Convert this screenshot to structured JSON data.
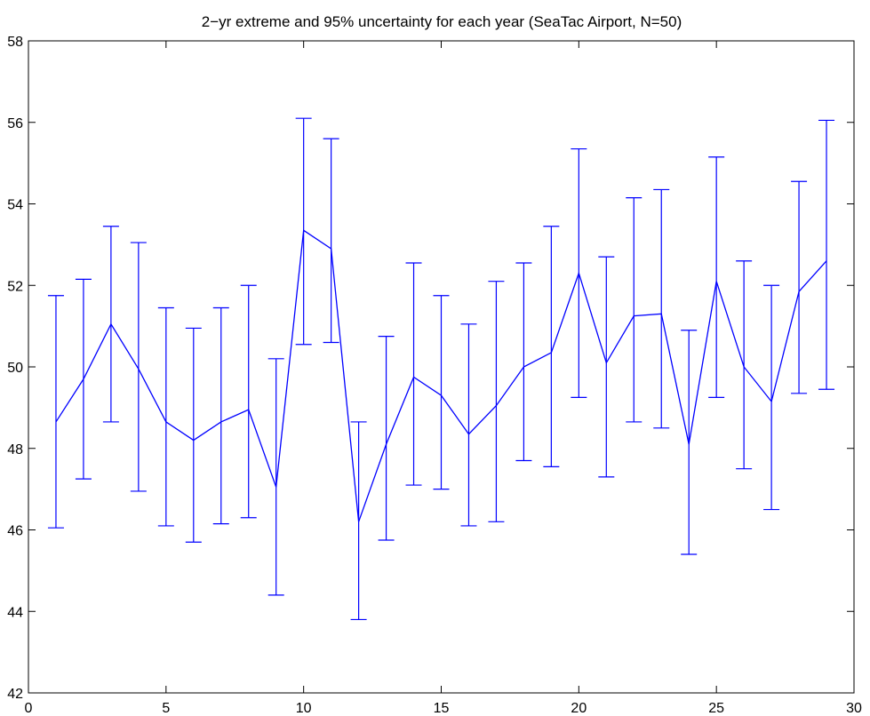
{
  "chart_data": {
    "type": "line",
    "title": "2−yr extreme and 95% uncertainty for each year (SeaTac Airport, N=50)",
    "xlabel": "",
    "ylabel": "",
    "xlim": [
      0,
      30
    ],
    "ylim": [
      42,
      58
    ],
    "xticks": [
      0,
      5,
      10,
      15,
      20,
      25,
      30
    ],
    "yticks": [
      42,
      44,
      46,
      48,
      50,
      52,
      54,
      56,
      58
    ],
    "grid": false,
    "legend": "none",
    "line_color": "#0000ff",
    "x": [
      1,
      2,
      3,
      4,
      5,
      6,
      7,
      8,
      9,
      10,
      11,
      12,
      13,
      14,
      15,
      16,
      17,
      18,
      19,
      20,
      21,
      22,
      23,
      24,
      25,
      26,
      27,
      28,
      29
    ],
    "y": [
      48.65,
      49.7,
      51.05,
      49.95,
      48.65,
      48.2,
      48.65,
      48.95,
      47.05,
      53.35,
      52.9,
      46.2,
      48.1,
      49.75,
      49.3,
      48.35,
      49.05,
      50.0,
      50.35,
      52.3,
      50.1,
      51.25,
      51.3,
      48.1,
      52.1,
      50.0,
      49.15,
      51.85,
      52.6
    ],
    "lower": [
      46.05,
      47.25,
      48.65,
      46.95,
      46.1,
      45.7,
      46.15,
      46.3,
      44.4,
      50.55,
      50.6,
      43.8,
      45.75,
      47.1,
      47.0,
      46.1,
      46.2,
      47.7,
      47.55,
      49.25,
      47.3,
      48.65,
      48.5,
      45.4,
      49.25,
      47.5,
      46.5,
      49.35,
      49.45
    ],
    "upper": [
      51.75,
      52.15,
      53.45,
      53.05,
      51.45,
      50.95,
      51.45,
      52.0,
      50.2,
      56.1,
      55.6,
      48.65,
      50.75,
      52.55,
      51.75,
      51.05,
      52.1,
      52.55,
      53.45,
      55.35,
      52.7,
      54.15,
      54.35,
      50.9,
      55.15,
      52.6,
      52.0,
      54.55,
      56.05
    ]
  }
}
